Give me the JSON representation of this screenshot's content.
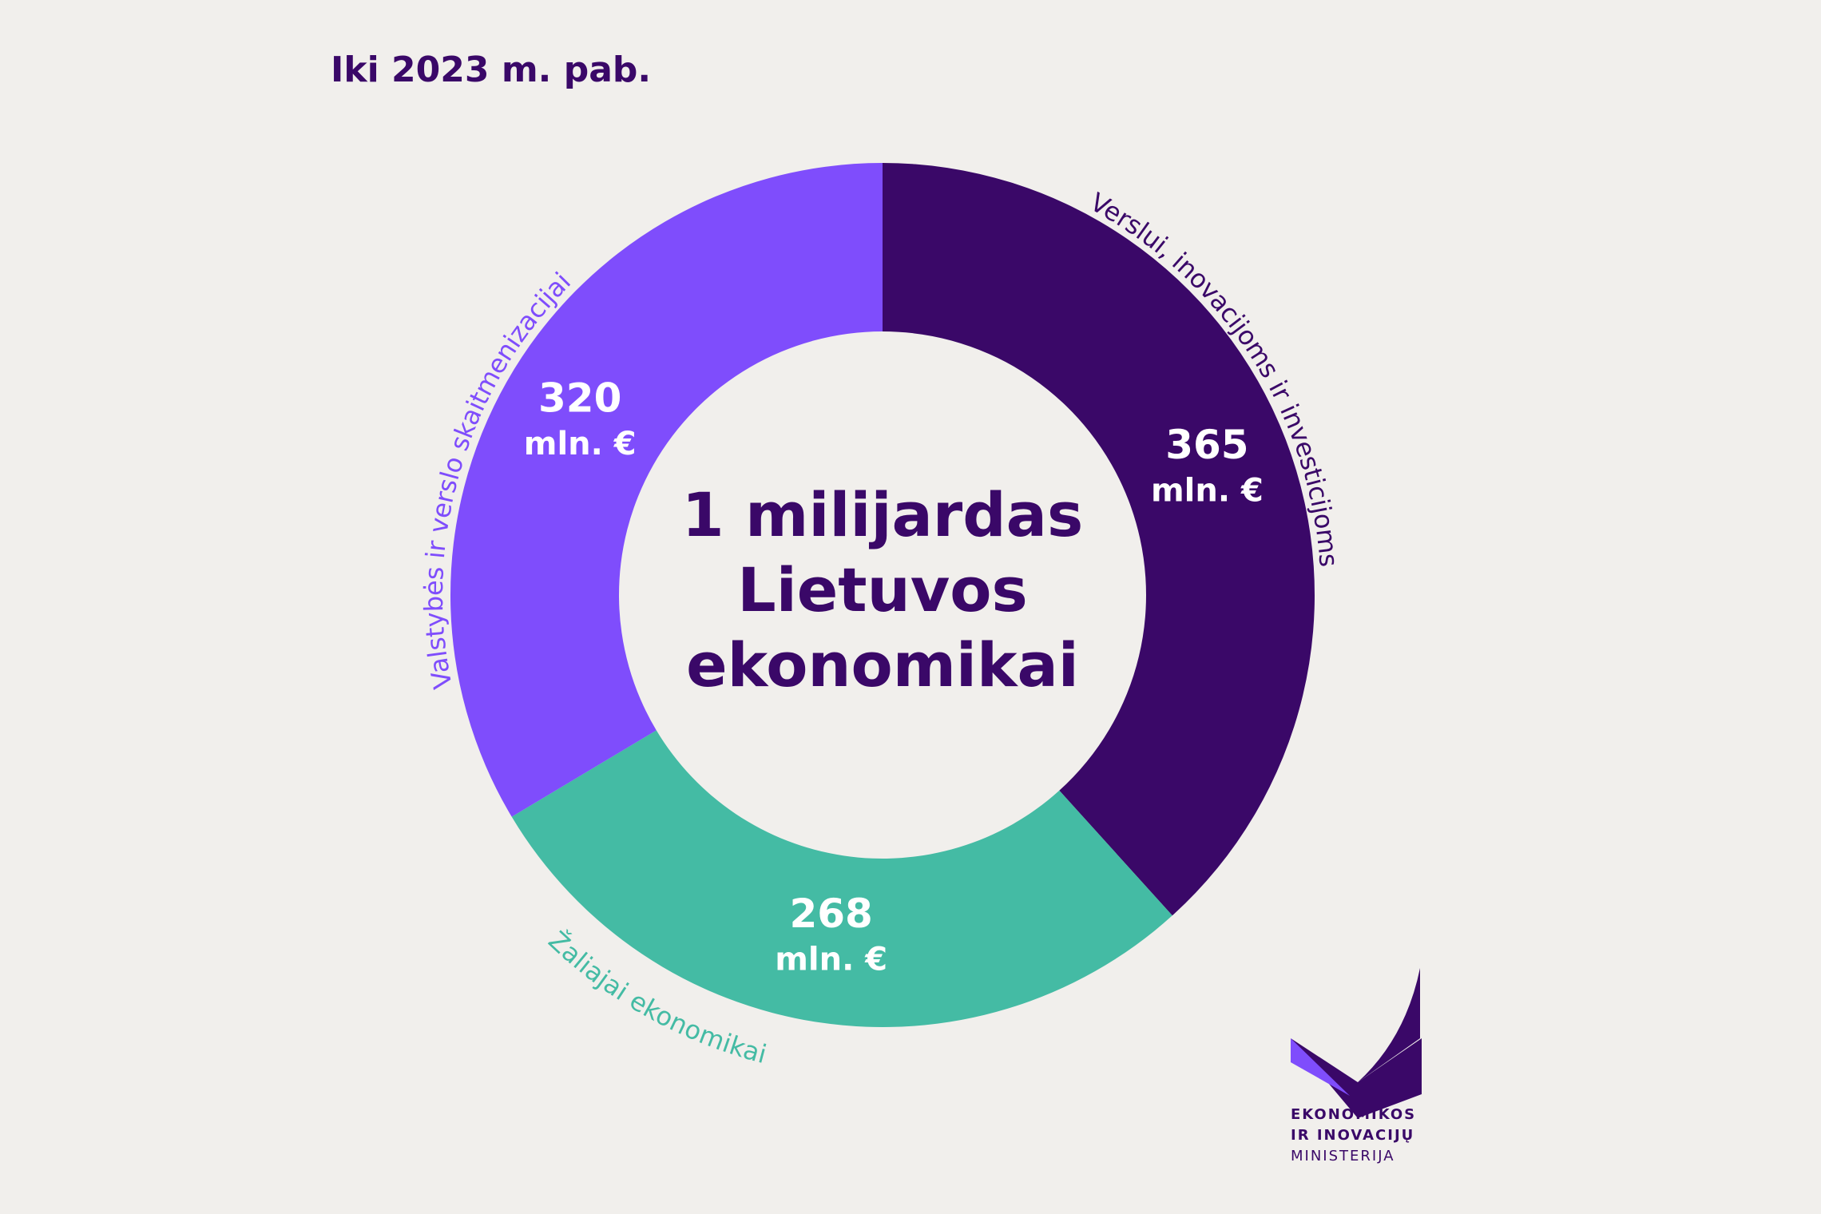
{
  "chart_data": {
    "type": "donut",
    "title": "Iki 2023 m. pab.",
    "center_text": [
      "1 milijardas",
      "Lietuvos",
      "ekonomikai"
    ],
    "categories": [
      "Verslui, inovacijoms ir investicijoms",
      "Žaliajai ekonomikai",
      "Valstybės ir verslo skaitmenizacijai"
    ],
    "values": [
      365,
      268,
      320
    ],
    "unit": "mln. €",
    "colors": [
      "#3a0868",
      "#44bba4",
      "#7f4dfc"
    ]
  },
  "logo": {
    "lines": [
      "EKONOMIKOS",
      "IR INOVACIJŲ",
      "MINISTERIJA"
    ]
  }
}
